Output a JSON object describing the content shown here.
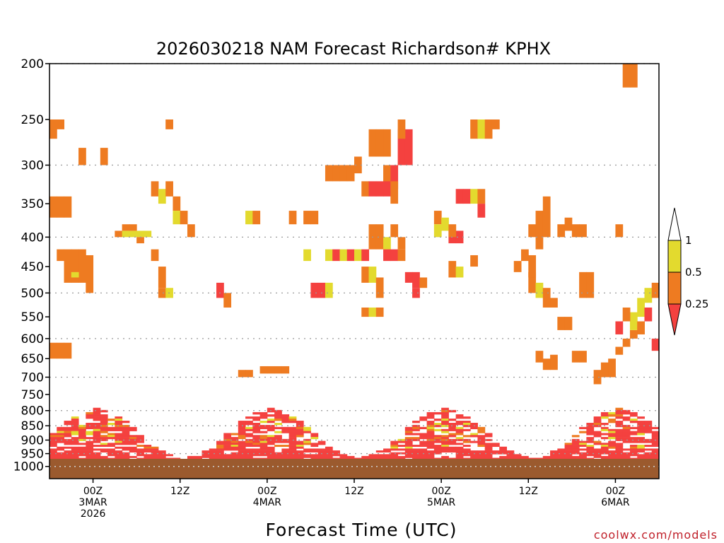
{
  "chart_data": {
    "type": "heatmap",
    "title": "2026030218 NAM Forecast Richardson# KPHX",
    "xlabel": "Forecast Time (UTC)",
    "ylabel": "",
    "x_range_hours": [
      0,
      84
    ],
    "x_ticks": [
      {
        "hour": 6,
        "lines": [
          "00Z",
          "3MAR",
          "2026"
        ]
      },
      {
        "hour": 18,
        "lines": [
          "12Z"
        ]
      },
      {
        "hour": 30,
        "lines": [
          "00Z",
          "4MAR"
        ]
      },
      {
        "hour": 42,
        "lines": [
          "12Z"
        ]
      },
      {
        "hour": 54,
        "lines": [
          "00Z",
          "5MAR"
        ]
      },
      {
        "hour": 66,
        "lines": [
          "12Z"
        ]
      },
      {
        "hour": 78,
        "lines": [
          "00Z",
          "6MAR"
        ]
      }
    ],
    "y_axis": "pressure_hPa",
    "y_range": [
      200,
      1050
    ],
    "y_ticks": [
      "200",
      "250",
      "300",
      "350",
      "400",
      "450",
      "500",
      "550",
      "600",
      "650",
      "700",
      "750",
      "800",
      "850",
      "900",
      "950",
      "1000"
    ],
    "grid": true,
    "ground_level_hPa": 970,
    "colors": {
      "low": "#f4413f",
      "mid": "#ee7b21",
      "high": "#e3da2e",
      "ground": "#9b5a2e",
      "grid": "#9a9a9a"
    },
    "legend": {
      "position": "right",
      "labels": [
        "1",
        "0.5",
        "0.25"
      ],
      "bins": [
        {
          "range": [
            0.5,
            1
          ],
          "color": "#e3da2e"
        },
        {
          "range": [
            0.25,
            0.5
          ],
          "color": "#ee7b21"
        },
        {
          "range": [
            0,
            0.25
          ],
          "color": "#f4413f"
        }
      ]
    },
    "cells": [
      [
        0,
        250,
        270,
        2
      ],
      [
        1,
        250,
        260,
        2
      ],
      [
        4,
        280,
        300,
        2
      ],
      [
        7,
        280,
        300,
        2
      ],
      [
        16,
        250,
        260,
        2
      ],
      [
        0,
        340,
        370,
        2
      ],
      [
        1,
        340,
        370,
        2
      ],
      [
        2,
        340,
        370,
        2
      ],
      [
        9,
        390,
        400,
        2
      ],
      [
        10,
        390,
        400,
        3
      ],
      [
        10,
        380,
        390,
        2
      ],
      [
        11,
        390,
        400,
        3
      ],
      [
        11,
        380,
        390,
        2
      ],
      [
        12,
        390,
        400,
        3
      ],
      [
        12,
        400,
        410,
        2
      ],
      [
        13,
        390,
        400,
        3
      ],
      [
        14,
        320,
        340,
        2
      ],
      [
        15,
        330,
        350,
        3
      ],
      [
        16,
        320,
        340,
        2
      ],
      [
        17,
        340,
        360,
        2
      ],
      [
        17,
        360,
        380,
        3
      ],
      [
        18,
        360,
        380,
        2
      ],
      [
        19,
        380,
        400,
        2
      ],
      [
        1,
        420,
        440,
        2
      ],
      [
        2,
        420,
        480,
        2
      ],
      [
        3,
        420,
        480,
        2
      ],
      [
        4,
        420,
        480,
        2
      ],
      [
        3,
        460,
        470,
        3
      ],
      [
        5,
        430,
        500,
        2
      ],
      [
        14,
        420,
        440,
        2
      ],
      [
        15,
        450,
        490,
        2
      ],
      [
        15,
        490,
        510,
        2
      ],
      [
        16,
        490,
        510,
        3
      ],
      [
        23,
        480,
        510,
        1
      ],
      [
        24,
        500,
        530,
        2
      ],
      [
        27,
        360,
        380,
        3
      ],
      [
        28,
        360,
        380,
        2
      ],
      [
        33,
        360,
        380,
        2
      ],
      [
        35,
        360,
        380,
        2
      ],
      [
        36,
        360,
        380,
        2
      ],
      [
        38,
        300,
        320,
        2
      ],
      [
        39,
        300,
        320,
        2
      ],
      [
        40,
        300,
        320,
        2
      ],
      [
        41,
        300,
        320,
        2
      ],
      [
        42,
        290,
        310,
        2
      ],
      [
        43,
        320,
        340,
        2
      ],
      [
        44,
        320,
        340,
        1
      ],
      [
        45,
        320,
        340,
        1
      ],
      [
        46,
        300,
        330,
        2
      ],
      [
        46,
        320,
        340,
        1
      ],
      [
        47,
        300,
        330,
        1
      ],
      [
        47,
        320,
        350,
        2
      ],
      [
        44,
        260,
        290,
        2
      ],
      [
        45,
        260,
        290,
        2
      ],
      [
        46,
        260,
        290,
        2
      ],
      [
        48,
        260,
        300,
        1
      ],
      [
        49,
        260,
        300,
        1
      ],
      [
        48,
        250,
        270,
        2
      ],
      [
        38,
        420,
        440,
        3
      ],
      [
        39,
        420,
        440,
        1
      ],
      [
        40,
        420,
        440,
        3
      ],
      [
        41,
        420,
        440,
        1
      ],
      [
        42,
        420,
        440,
        3
      ],
      [
        43,
        420,
        440,
        1
      ],
      [
        44,
        380,
        420,
        2
      ],
      [
        45,
        380,
        420,
        2
      ],
      [
        43,
        450,
        480,
        2
      ],
      [
        44,
        450,
        480,
        3
      ],
      [
        45,
        470,
        510,
        2
      ],
      [
        46,
        400,
        420,
        3
      ],
      [
        46,
        420,
        440,
        1
      ],
      [
        47,
        420,
        440,
        1
      ],
      [
        48,
        420,
        440,
        2
      ],
      [
        48,
        400,
        420,
        2
      ],
      [
        47,
        380,
        400,
        2
      ],
      [
        49,
        460,
        480,
        1
      ],
      [
        50,
        460,
        490,
        1
      ],
      [
        50,
        490,
        510,
        1
      ],
      [
        51,
        470,
        490,
        2
      ],
      [
        53,
        360,
        380,
        2
      ],
      [
        53,
        380,
        400,
        3
      ],
      [
        54,
        370,
        390,
        3
      ],
      [
        55,
        390,
        410,
        1
      ],
      [
        56,
        390,
        410,
        1
      ],
      [
        55,
        380,
        400,
        2
      ],
      [
        56,
        330,
        350,
        1
      ],
      [
        57,
        330,
        350,
        1
      ],
      [
        58,
        330,
        350,
        3
      ],
      [
        59,
        330,
        350,
        2
      ],
      [
        59,
        350,
        370,
        1
      ],
      [
        58,
        250,
        270,
        2
      ],
      [
        59,
        250,
        270,
        3
      ],
      [
        60,
        250,
        270,
        2
      ],
      [
        61,
        250,
        260,
        2
      ],
      [
        35,
        420,
        440,
        3
      ],
      [
        36,
        480,
        510,
        1
      ],
      [
        37,
        480,
        510,
        1
      ],
      [
        38,
        480,
        510,
        3
      ],
      [
        43,
        530,
        550,
        2
      ],
      [
        44,
        530,
        550,
        3
      ],
      [
        45,
        530,
        550,
        2
      ],
      [
        55,
        440,
        470,
        2
      ],
      [
        56,
        450,
        470,
        3
      ],
      [
        58,
        430,
        450,
        2
      ],
      [
        64,
        440,
        460,
        2
      ],
      [
        65,
        420,
        440,
        2
      ],
      [
        66,
        380,
        400,
        2
      ],
      [
        67,
        360,
        420,
        2
      ],
      [
        68,
        340,
        400,
        2
      ],
      [
        70,
        380,
        400,
        2
      ],
      [
        71,
        370,
        390,
        2
      ],
      [
        72,
        380,
        400,
        2
      ],
      [
        73,
        380,
        400,
        2
      ],
      [
        66,
        460,
        500,
        2
      ],
      [
        67,
        480,
        510,
        3
      ],
      [
        68,
        490,
        530,
        2
      ],
      [
        69,
        510,
        530,
        2
      ],
      [
        66,
        430,
        470,
        2
      ],
      [
        73,
        460,
        510,
        2
      ],
      [
        74,
        460,
        510,
        2
      ],
      [
        78,
        380,
        400,
        2
      ],
      [
        79,
        200,
        220,
        2
      ],
      [
        80,
        200,
        220,
        2
      ],
      [
        67,
        630,
        660,
        2
      ],
      [
        68,
        650,
        680,
        2
      ],
      [
        69,
        640,
        680,
        2
      ],
      [
        72,
        630,
        660,
        2
      ],
      [
        73,
        630,
        660,
        2
      ],
      [
        75,
        680,
        720,
        2
      ],
      [
        76,
        660,
        700,
        2
      ],
      [
        77,
        650,
        700,
        2
      ],
      [
        78,
        620,
        640,
        2
      ],
      [
        79,
        600,
        620,
        2
      ],
      [
        80,
        580,
        600,
        2
      ],
      [
        80,
        540,
        580,
        3
      ],
      [
        81,
        510,
        550,
        3
      ],
      [
        82,
        490,
        520,
        3
      ],
      [
        83,
        480,
        510,
        2
      ],
      [
        82,
        530,
        560,
        1
      ],
      [
        81,
        560,
        590,
        2
      ],
      [
        83,
        600,
        630,
        1
      ],
      [
        84,
        620,
        640,
        2
      ],
      [
        79,
        530,
        560,
        2
      ],
      [
        78,
        560,
        590,
        1
      ],
      [
        0,
        610,
        650,
        2
      ],
      [
        1,
        610,
        650,
        2
      ],
      [
        2,
        610,
        650,
        2
      ],
      [
        26,
        680,
        700,
        2
      ],
      [
        27,
        680,
        700,
        2
      ],
      [
        29,
        670,
        690,
        2
      ],
      [
        30,
        670,
        690,
        2
      ],
      [
        31,
        670,
        690,
        2
      ],
      [
        32,
        670,
        690,
        2
      ],
      [
        70,
        550,
        580,
        2
      ],
      [
        71,
        550,
        580,
        2
      ]
    ]
  }
}
